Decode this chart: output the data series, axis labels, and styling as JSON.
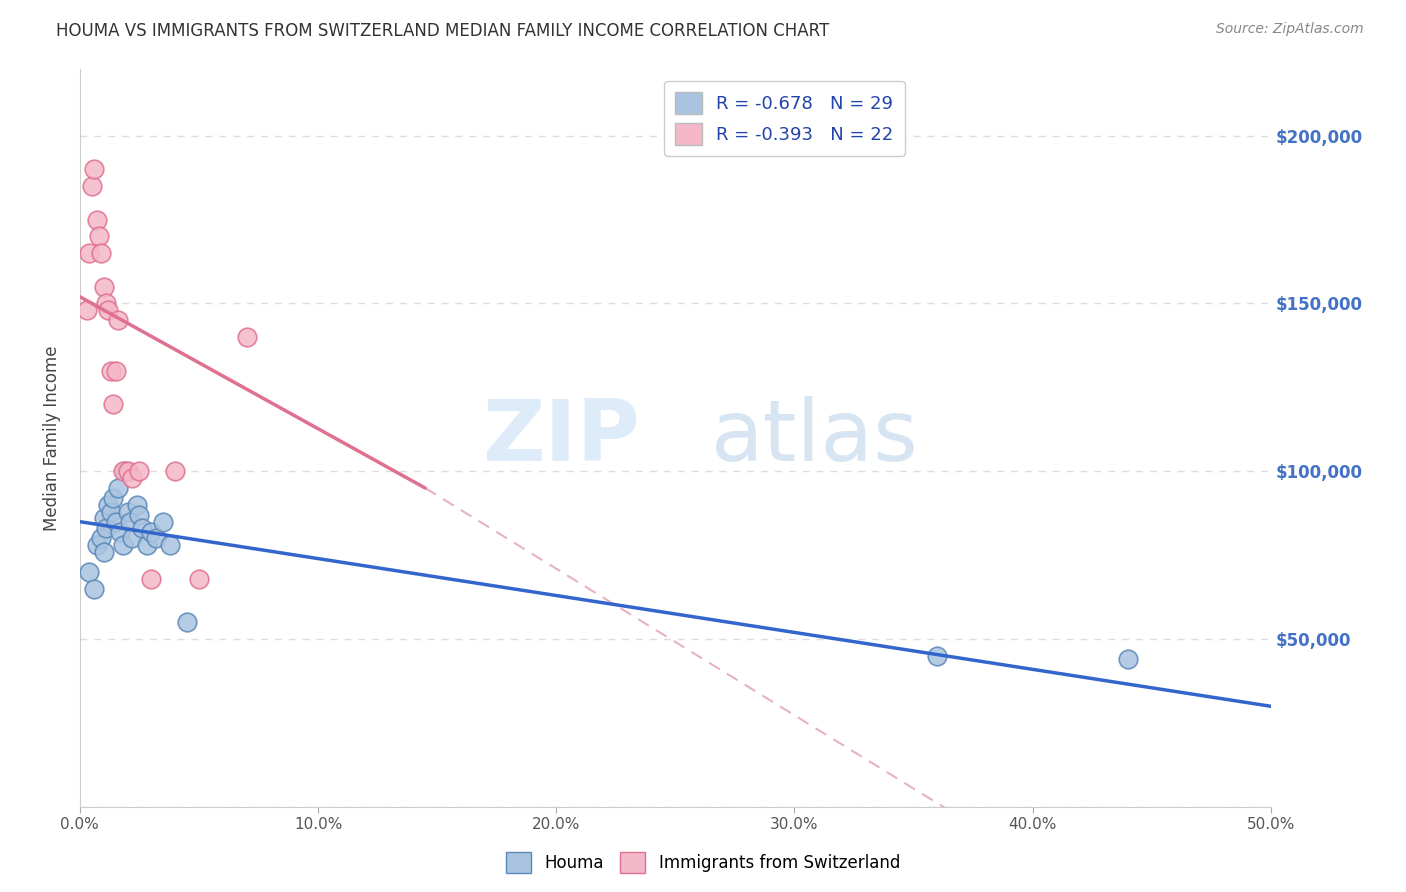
{
  "title": "HOUMA VS IMMIGRANTS FROM SWITZERLAND MEDIAN FAMILY INCOME CORRELATION CHART",
  "source": "Source: ZipAtlas.com",
  "xlabel": "",
  "ylabel": "Median Family Income",
  "watermark_zip": "ZIP",
  "watermark_atlas": "atlas",
  "legend_entries": [
    {
      "label": "R = -0.678   N = 29",
      "color": "#a8c4e0"
    },
    {
      "label": "R = -0.393   N = 22",
      "color": "#f4b8c8"
    }
  ],
  "bottom_legend": [
    "Houma",
    "Immigrants from Switzerland"
  ],
  "xlim": [
    0.0,
    0.5
  ],
  "ylim": [
    0,
    220000
  ],
  "yticks": [
    0,
    50000,
    100000,
    150000,
    200000
  ],
  "xtick_vals": [
    0.0,
    0.1,
    0.2,
    0.3,
    0.4,
    0.5
  ],
  "xtick_labels": [
    "0.0%",
    "10.0%",
    "20.0%",
    "30.0%",
    "40.0%",
    "50.0%"
  ],
  "houma_scatter": {
    "x": [
      0.004,
      0.006,
      0.007,
      0.009,
      0.01,
      0.01,
      0.011,
      0.012,
      0.013,
      0.014,
      0.015,
      0.016,
      0.017,
      0.018,
      0.019,
      0.02,
      0.021,
      0.022,
      0.024,
      0.025,
      0.026,
      0.028,
      0.03,
      0.032,
      0.035,
      0.038,
      0.045,
      0.36,
      0.44
    ],
    "y": [
      70000,
      65000,
      78000,
      80000,
      76000,
      86000,
      83000,
      90000,
      88000,
      92000,
      85000,
      95000,
      82000,
      78000,
      100000,
      88000,
      85000,
      80000,
      90000,
      87000,
      83000,
      78000,
      82000,
      80000,
      85000,
      78000,
      55000,
      45000,
      44000
    ],
    "color": "#aac4e0",
    "edgecolor": "#5a88b8",
    "size": 180
  },
  "swiss_scatter": {
    "x": [
      0.003,
      0.004,
      0.005,
      0.006,
      0.007,
      0.008,
      0.009,
      0.01,
      0.011,
      0.012,
      0.013,
      0.014,
      0.015,
      0.016,
      0.018,
      0.02,
      0.022,
      0.025,
      0.03,
      0.04,
      0.05,
      0.07
    ],
    "y": [
      148000,
      165000,
      185000,
      190000,
      175000,
      170000,
      165000,
      155000,
      150000,
      148000,
      130000,
      120000,
      130000,
      145000,
      100000,
      100000,
      98000,
      100000,
      68000,
      100000,
      68000,
      140000
    ],
    "color": "#f4b8c8",
    "edgecolor": "#e07090",
    "size": 180
  },
  "houma_line": {
    "x": [
      0.0,
      0.5
    ],
    "y": [
      85000,
      30000
    ],
    "color": "#3366cc",
    "linewidth": 2.5
  },
  "swiss_line": {
    "x": [
      0.0,
      0.145
    ],
    "y": [
      152000,
      95000
    ],
    "color": "#e07090",
    "linewidth": 2.5
  },
  "swiss_dashed": {
    "x": [
      0.145,
      0.5
    ],
    "y": [
      95000,
      -60000
    ],
    "color": "#e0a0b0",
    "linewidth": 1.5
  },
  "grid_color": "#dddddd",
  "background_color": "#ffffff",
  "title_color": "#333333",
  "right_ytick_color": "#4472c4"
}
